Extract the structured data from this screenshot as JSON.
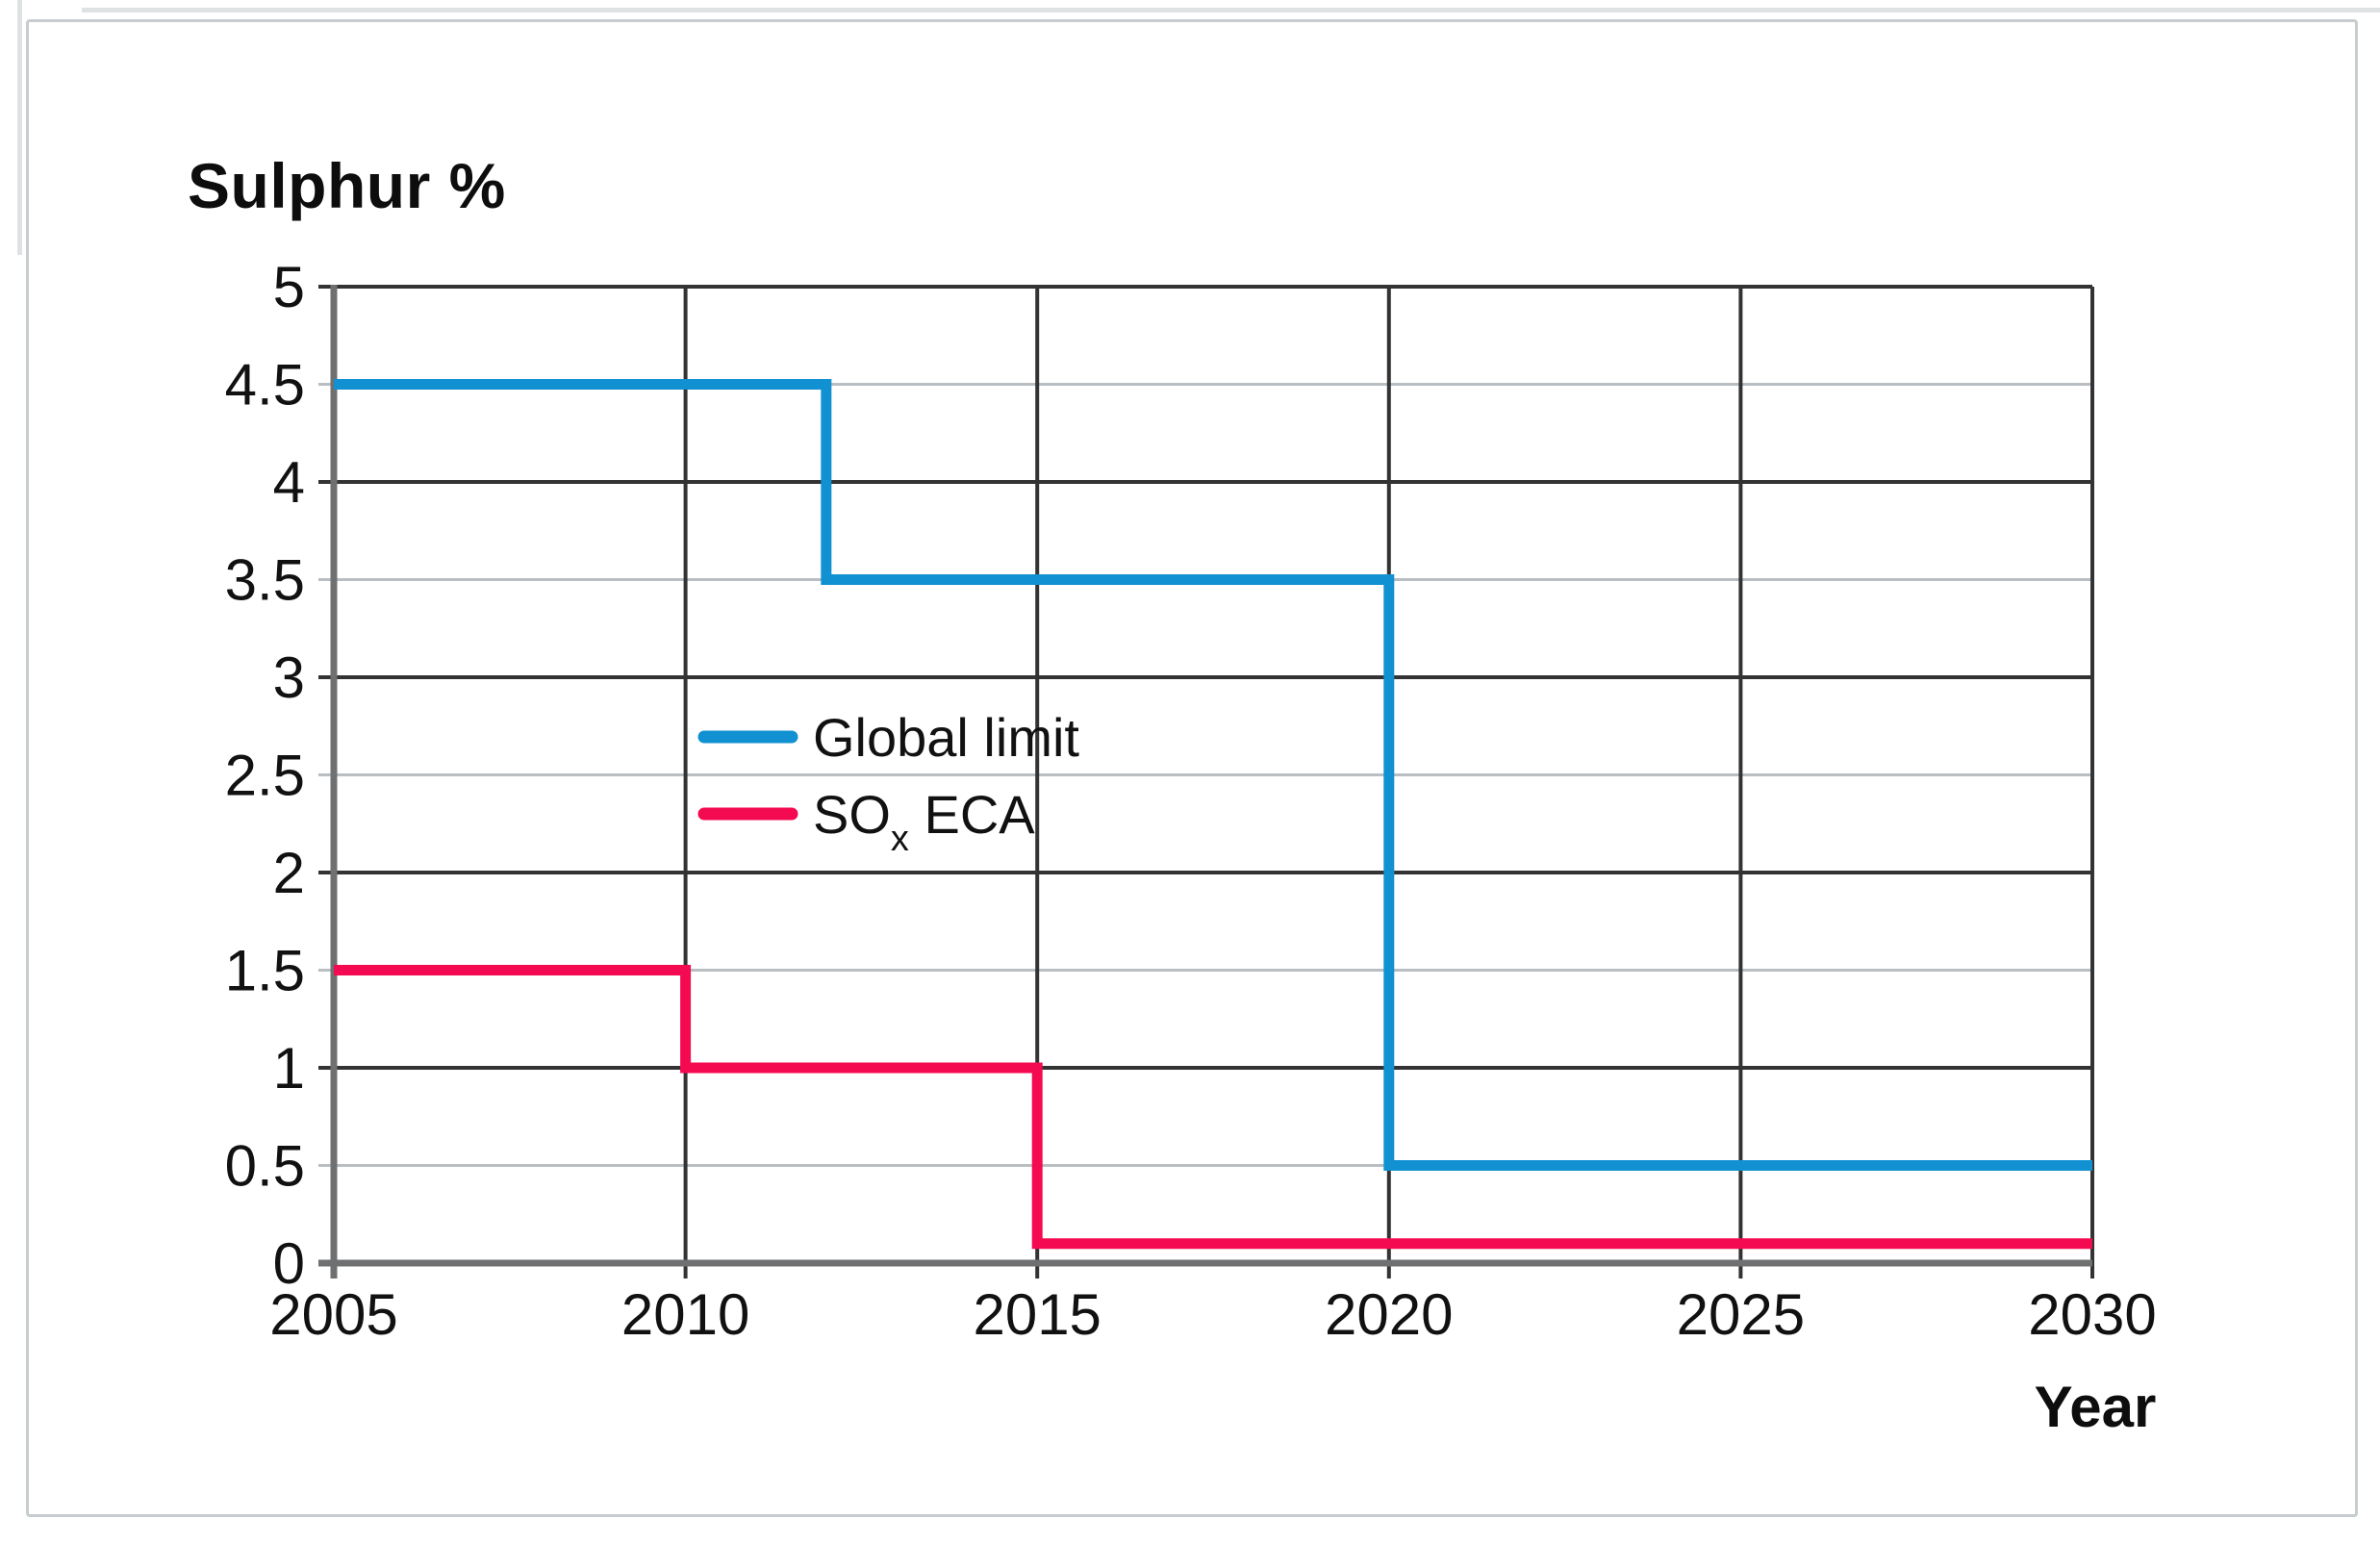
{
  "page": {
    "title": "Sulphur %",
    "x_axis_title": "Year"
  },
  "chart_data": {
    "type": "line",
    "subtype": "step",
    "title": "Sulphur %",
    "xlabel": "Year",
    "ylabel": "Sulphur %",
    "x_range": [
      2005,
      2030
    ],
    "y_range": [
      0,
      5
    ],
    "grid": "on",
    "legend_position": "inside-center-left",
    "x_ticks": [
      {
        "v": 2005,
        "label": "2005"
      },
      {
        "v": 2010,
        "label": "2010"
      },
      {
        "v": 2015,
        "label": "2015"
      },
      {
        "v": 2020,
        "label": "2020"
      },
      {
        "v": 2025,
        "label": "2025"
      },
      {
        "v": 2030,
        "label": "2030"
      }
    ],
    "y_ticks": [
      {
        "v": 0,
        "label": "0",
        "major": true
      },
      {
        "v": 0.5,
        "label": "0.5",
        "major": false
      },
      {
        "v": 1,
        "label": "1",
        "major": true
      },
      {
        "v": 1.5,
        "label": "1.5",
        "major": false
      },
      {
        "v": 2,
        "label": "2",
        "major": true
      },
      {
        "v": 2.5,
        "label": "2.5",
        "major": false
      },
      {
        "v": 3,
        "label": "3",
        "major": true
      },
      {
        "v": 3.5,
        "label": "3.5",
        "major": false
      },
      {
        "v": 4,
        "label": "4",
        "major": true
      },
      {
        "v": 4.5,
        "label": "4.5",
        "major": false
      },
      {
        "v": 5,
        "label": "5",
        "major": true
      }
    ],
    "colors": {
      "major_grid": "#333333",
      "minor_grid": "#b9bec3",
      "axis": "#6e7072",
      "text": "#111111",
      "global_limit_blue": "#1190d2",
      "sox_eca_red": "#f40a50"
    },
    "series": [
      {
        "name": "Global limit",
        "color": "#1190d2",
        "label_parts": [
          {
            "text": "Global limit"
          }
        ],
        "points": [
          [
            2005,
            4.5
          ],
          [
            2012,
            4.5
          ],
          [
            2012,
            3.5
          ],
          [
            2020,
            3.5
          ],
          [
            2020,
            0.5
          ],
          [
            2030,
            0.5
          ]
        ]
      },
      {
        "name": "SOx ECA",
        "color": "#f40a50",
        "label_parts": [
          {
            "text": "SO"
          },
          {
            "text": "x",
            "sub": true
          },
          {
            "text": " ECA"
          }
        ],
        "points": [
          [
            2005,
            1.5
          ],
          [
            2010,
            1.5
          ],
          [
            2010,
            1.0
          ],
          [
            2015,
            1.0
          ],
          [
            2015,
            0.1
          ],
          [
            2030,
            0.1
          ]
        ]
      }
    ]
  }
}
